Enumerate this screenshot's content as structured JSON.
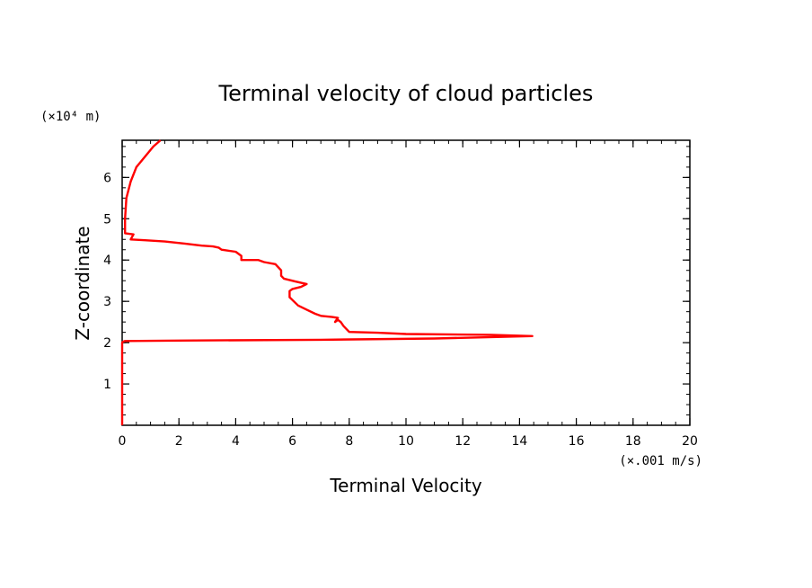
{
  "chart_data": {
    "type": "line",
    "title": "Terminal velocity of cloud particles",
    "xlabel": "Terminal Velocity",
    "ylabel": "Z-coordinate",
    "x_unit": "(×.001 m/s)",
    "y_unit": "(×10⁴ m)",
    "xlim": [
      0,
      20
    ],
    "ylim": [
      0,
      6.9
    ],
    "x_ticks": [
      0,
      2,
      4,
      6,
      8,
      10,
      12,
      14,
      16,
      18,
      20
    ],
    "y_ticks": [
      1,
      2,
      3,
      4,
      5,
      6
    ],
    "grid": false,
    "line_color": "#ff0000",
    "series": [
      {
        "x": [
          0,
          0,
          0.02,
          0.1,
          2,
          7,
          11,
          14.45,
          13,
          10,
          9,
          8,
          7.8,
          7.7,
          7.6,
          7.5,
          7.6,
          7.4,
          7,
          6.8,
          6.5,
          6.2,
          5.9,
          5.9,
          6.0,
          6.3,
          6.5,
          6.1,
          5.7,
          5.6,
          5.6,
          5.4,
          5.0,
          4.8,
          4.2,
          4.2,
          4.0,
          3.5,
          3.4,
          3.2,
          2.8,
          2.2,
          1.5,
          0.8,
          0.3,
          0.4,
          0.1,
          0.1,
          0.15,
          0.3,
          0.5,
          0.8,
          1.1,
          1.35
        ],
        "y": [
          0,
          2.0,
          2.02,
          2.04,
          2.05,
          2.07,
          2.1,
          2.16,
          2.19,
          2.21,
          2.24,
          2.26,
          2.4,
          2.5,
          2.55,
          2.5,
          2.6,
          2.62,
          2.65,
          2.7,
          2.8,
          2.9,
          3.1,
          3.25,
          3.3,
          3.35,
          3.42,
          3.48,
          3.55,
          3.62,
          3.75,
          3.9,
          3.95,
          4.0,
          4.0,
          4.1,
          4.2,
          4.25,
          4.3,
          4.33,
          4.35,
          4.4,
          4.45,
          4.48,
          4.5,
          4.62,
          4.65,
          5.0,
          5.5,
          5.9,
          6.25,
          6.5,
          6.75,
          6.9
        ]
      }
    ]
  }
}
